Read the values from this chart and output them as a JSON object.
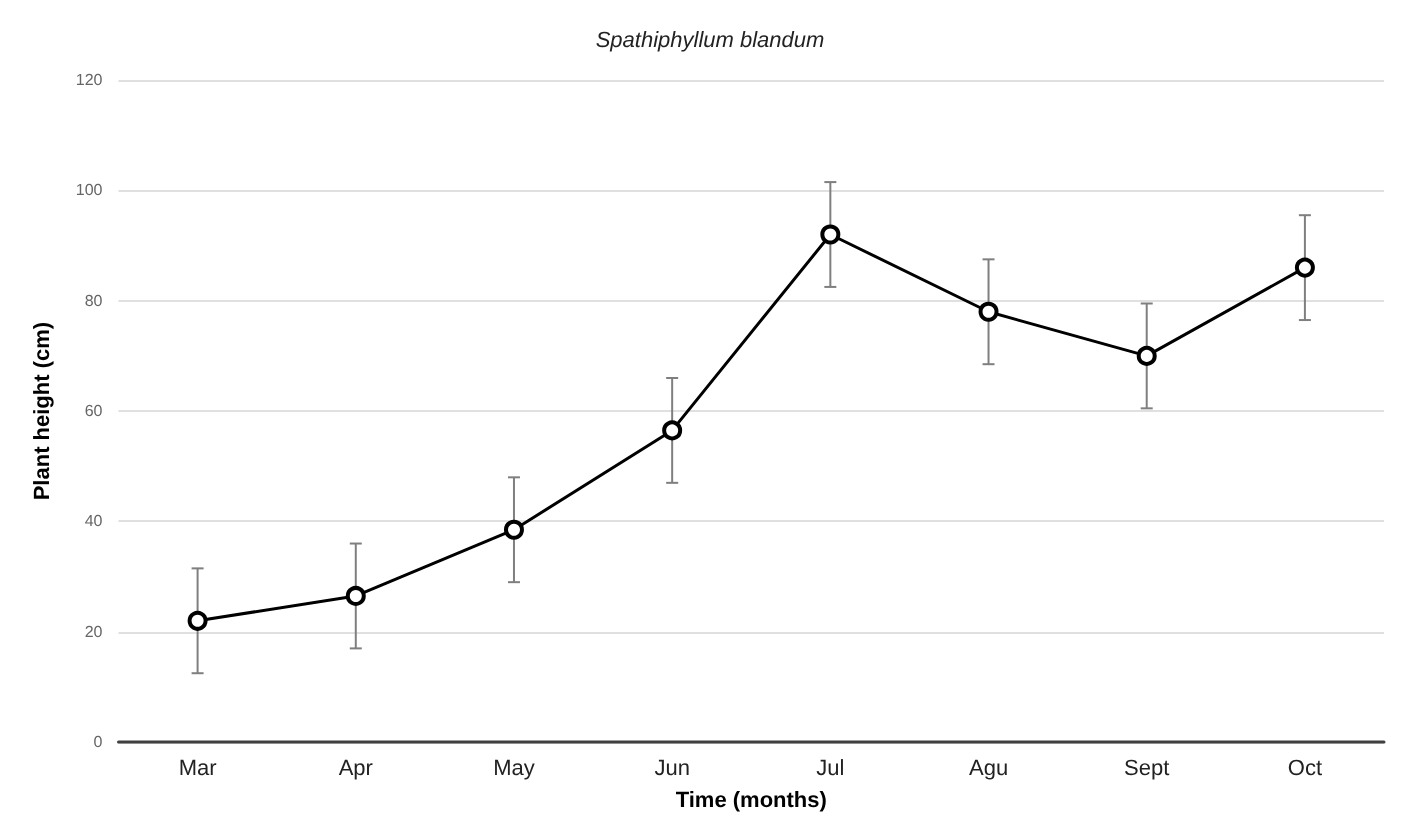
{
  "chart_data": {
    "type": "line",
    "title": "Spathiphyllum blandum",
    "xlabel": "Time (months)",
    "ylabel": "Plant height (cm)",
    "categories": [
      "Mar",
      "Apr",
      "May",
      "Jun",
      "Jul",
      "Agu",
      "Sept",
      "Oct"
    ],
    "values": [
      22,
      26.5,
      38.5,
      56.5,
      92,
      78,
      70,
      86
    ],
    "errors": [
      9.5,
      9.5,
      9.5,
      9.5,
      9.5,
      9.5,
      9.5,
      9.5
    ],
    "color": "#000000",
    "ylim": [
      0,
      120
    ],
    "yticks": [
      0,
      20,
      40,
      60,
      80,
      100,
      120
    ],
    "grid": "y",
    "marker": "circle",
    "line_style": "solid"
  }
}
